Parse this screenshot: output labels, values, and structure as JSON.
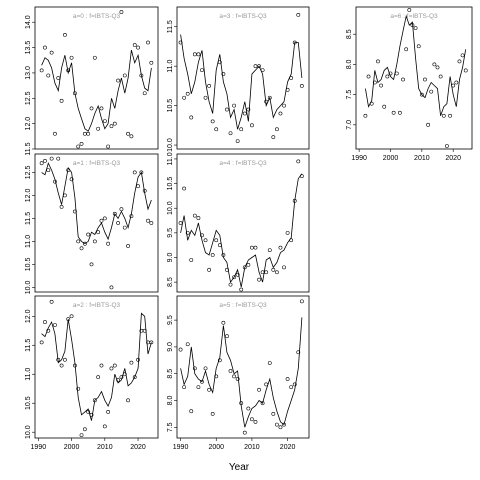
{
  "figure": {
    "x_axis_title": "Year"
  },
  "chart_data": [
    {
      "type": "line",
      "title": "a=0 : f=IBTS-Q3",
      "xlim": [
        1989,
        2026
      ],
      "ylim": [
        11.5,
        14.3
      ],
      "xticks": [],
      "yticks": [
        11.5,
        12.0,
        12.5,
        13.0,
        13.5,
        14.0
      ],
      "years": [
        1991,
        1992,
        1993,
        1994,
        1995,
        1996,
        1997,
        1998,
        1999,
        2000,
        2001,
        2002,
        2003,
        2004,
        2005,
        2006,
        2007,
        2008,
        2009,
        2010,
        2011,
        2012,
        2013,
        2014,
        2015,
        2016,
        2017,
        2018,
        2019,
        2020,
        2021,
        2022,
        2023,
        2024
      ],
      "fitted": [
        13.15,
        13.3,
        13.25,
        13.1,
        12.8,
        12.65,
        13.1,
        13.35,
        13.0,
        13.2,
        12.6,
        12.3,
        12.1,
        11.9,
        11.85,
        12.0,
        12.2,
        12.35,
        12.1,
        11.9,
        12.0,
        12.5,
        12.3,
        12.65,
        12.9,
        12.6,
        12.9,
        13.45,
        13.2,
        13.35,
        12.95,
        12.7,
        12.65,
        13.1
      ],
      "observed": [
        13.05,
        13.5,
        12.95,
        13.4,
        11.8,
        12.9,
        12.45,
        13.75,
        13.05,
        13.3,
        12.6,
        11.55,
        11.6,
        11.8,
        11.8,
        12.3,
        13.3,
        11.9,
        12.3,
        12.05,
        11.55,
        11.95,
        12.0,
        12.85,
        14.2,
        12.95,
        11.8,
        11.75,
        13.55,
        13.5,
        12.95,
        12.6,
        13.6,
        13.2
      ]
    },
    {
      "type": "line",
      "title": "a=3 : f=IBTS-Q3",
      "xlim": [
        1989,
        2026
      ],
      "ylim": [
        9.95,
        11.75
      ],
      "xticks": [],
      "yticks": [
        10.0,
        10.5,
        11.0,
        11.5
      ],
      "years": [
        1990,
        1991,
        1992,
        1993,
        1994,
        1995,
        1996,
        1997,
        1998,
        1999,
        2000,
        2001,
        2002,
        2003,
        2004,
        2005,
        2006,
        2007,
        2008,
        2009,
        2010,
        2011,
        2012,
        2013,
        2014,
        2015,
        2016,
        2017,
        2018,
        2019,
        2020,
        2021,
        2022,
        2023,
        2024
      ],
      "fitted": [
        11.4,
        11.1,
        10.9,
        10.65,
        10.8,
        11.05,
        11.2,
        10.8,
        10.55,
        10.4,
        10.95,
        11.15,
        10.8,
        10.65,
        10.35,
        10.45,
        10.2,
        10.35,
        10.55,
        10.3,
        10.9,
        10.95,
        11.0,
        10.9,
        10.5,
        10.6,
        10.35,
        10.45,
        10.5,
        10.55,
        10.8,
        10.9,
        11.3,
        11.3,
        10.85
      ],
      "observed": [
        11.3,
        10.6,
        10.65,
        10.35,
        11.15,
        11.15,
        10.95,
        10.6,
        10.75,
        10.3,
        10.2,
        11.05,
        10.9,
        10.45,
        10.15,
        10.5,
        10.05,
        10.2,
        10.4,
        10.45,
        10.25,
        11.0,
        11.0,
        10.95,
        10.55,
        10.6,
        10.1,
        10.2,
        10.4,
        10.5,
        10.7,
        10.85,
        11.3,
        11.65,
        10.75
      ]
    },
    {
      "type": "line",
      "title": "a=6 : f=IBTS-Q3",
      "xlim": [
        1989,
        2026
      ],
      "ylim": [
        6.6,
        8.95
      ],
      "xticks": [
        1990,
        2000,
        2010,
        2020
      ],
      "yticks": [
        7.0,
        7.5,
        8.0,
        8.5
      ],
      "years": [
        1992,
        1993,
        1994,
        1995,
        1996,
        1997,
        1998,
        1999,
        2000,
        2001,
        2002,
        2003,
        2004,
        2005,
        2006,
        2007,
        2008,
        2009,
        2010,
        2011,
        2012,
        2013,
        2014,
        2015,
        2016,
        2017,
        2018,
        2019,
        2020,
        2021,
        2022,
        2023,
        2024
      ],
      "fitted": [
        7.6,
        7.3,
        7.4,
        7.9,
        7.7,
        7.75,
        7.9,
        7.95,
        7.8,
        7.75,
        8.0,
        8.3,
        8.55,
        8.8,
        8.65,
        8.7,
        8.1,
        7.6,
        7.5,
        7.45,
        7.6,
        7.7,
        7.65,
        7.6,
        7.15,
        7.3,
        7.35,
        7.8,
        7.5,
        7.3,
        7.75,
        7.95,
        8.25
      ],
      "observed": [
        7.15,
        7.8,
        7.35,
        7.7,
        8.05,
        7.65,
        7.3,
        7.8,
        7.85,
        7.2,
        7.85,
        7.2,
        7.75,
        8.25,
        8.9,
        8.65,
        8.6,
        8.3,
        7.5,
        7.75,
        7.0,
        7.55,
        8.0,
        7.95,
        7.8,
        7.15,
        6.65,
        7.15,
        7.65,
        7.7,
        8.05,
        8.15,
        7.9
      ]
    },
    {
      "type": "line",
      "title": "a=1 : f=IBTS-Q3",
      "xlim": [
        1989,
        2026
      ],
      "ylim": [
        9.9,
        12.9
      ],
      "xticks": [],
      "yticks": [
        10.0,
        10.5,
        11.0,
        11.5,
        12.0,
        12.5
      ],
      "years": [
        1991,
        1992,
        1993,
        1994,
        1995,
        1996,
        1997,
        1998,
        1999,
        2000,
        2001,
        2002,
        2003,
        2004,
        2005,
        2006,
        2007,
        2008,
        2009,
        2010,
        2011,
        2012,
        2013,
        2014,
        2015,
        2016,
        2017,
        2018,
        2019,
        2020,
        2021,
        2022,
        2023,
        2024
      ],
      "fitted": [
        12.5,
        12.45,
        12.7,
        12.55,
        12.35,
        12.05,
        11.8,
        12.2,
        12.6,
        12.5,
        11.95,
        11.1,
        11.0,
        10.95,
        11.0,
        11.2,
        11.15,
        11.3,
        11.4,
        11.2,
        11.05,
        11.3,
        11.6,
        11.5,
        11.65,
        11.5,
        11.3,
        11.6,
        12.05,
        12.4,
        12.5,
        12.05,
        11.7,
        11.9
      ],
      "observed": [
        12.7,
        12.75,
        12.55,
        12.8,
        12.3,
        12.8,
        11.75,
        12.0,
        12.55,
        12.35,
        11.65,
        11.0,
        10.85,
        10.95,
        11.15,
        10.5,
        11.0,
        11.2,
        11.45,
        11.5,
        10.95,
        10.0,
        11.6,
        11.4,
        11.7,
        11.3,
        10.9,
        11.55,
        12.5,
        12.2,
        12.5,
        12.1,
        11.45,
        11.4
      ]
    },
    {
      "type": "line",
      "title": "a=4 : f=IBTS-Q3",
      "xlim": [
        1989,
        2026
      ],
      "ylim": [
        8.3,
        11.1
      ],
      "xticks": [],
      "yticks": [
        8.5,
        9.0,
        9.5,
        10.0,
        10.5,
        11.0
      ],
      "years": [
        1990,
        1991,
        1992,
        1993,
        1994,
        1995,
        1996,
        1997,
        1998,
        1999,
        2000,
        2001,
        2002,
        2003,
        2004,
        2005,
        2006,
        2007,
        2008,
        2009,
        2010,
        2011,
        2012,
        2013,
        2014,
        2015,
        2016,
        2017,
        2018,
        2019,
        2020,
        2021,
        2022,
        2023,
        2024
      ],
      "fitted": [
        9.5,
        9.85,
        9.35,
        9.55,
        9.45,
        9.7,
        9.35,
        9.1,
        9.05,
        9.3,
        9.55,
        9.45,
        9.0,
        8.9,
        8.5,
        8.6,
        8.75,
        8.4,
        8.8,
        8.95,
        9.0,
        9.05,
        8.7,
        8.5,
        8.95,
        9.0,
        8.8,
        8.9,
        9.1,
        9.15,
        9.3,
        9.4,
        10.15,
        10.6,
        10.7
      ],
      "observed": [
        9.7,
        10.4,
        9.5,
        8.95,
        9.85,
        9.8,
        9.45,
        9.35,
        8.75,
        9.05,
        9.35,
        9.25,
        9.05,
        8.75,
        8.45,
        8.6,
        8.65,
        8.35,
        8.8,
        8.85,
        9.2,
        9.2,
        8.55,
        8.7,
        8.7,
        9.15,
        8.75,
        8.7,
        9.2,
        8.8,
        9.5,
        9.35,
        10.15,
        10.95,
        10.65
      ]
    },
    {
      "type": "line",
      "title": "a=2 : f=IBTS-Q3",
      "xlim": [
        1989,
        2026
      ],
      "ylim": [
        9.9,
        12.35
      ],
      "xticks": [
        1990,
        2000,
        2010,
        2020
      ],
      "yticks": [
        10.0,
        10.5,
        11.0,
        11.5,
        12.0
      ],
      "years": [
        1991,
        1992,
        1993,
        1994,
        1995,
        1996,
        1997,
        1998,
        1999,
        2000,
        2001,
        2002,
        2003,
        2004,
        2005,
        2006,
        2007,
        2008,
        2009,
        2010,
        2011,
        2012,
        2013,
        2014,
        2015,
        2016,
        2017,
        2018,
        2019,
        2020,
        2021,
        2022,
        2023,
        2024
      ],
      "fitted": [
        11.7,
        11.65,
        11.8,
        11.9,
        11.7,
        11.2,
        11.25,
        11.4,
        11.95,
        11.6,
        11.2,
        10.6,
        10.3,
        10.35,
        10.4,
        10.2,
        10.55,
        10.6,
        10.7,
        10.55,
        10.45,
        10.6,
        11.0,
        10.85,
        10.9,
        11.1,
        10.8,
        10.85,
        10.95,
        11.1,
        12.05,
        12.0,
        11.35,
        11.55
      ],
      "observed": [
        11.55,
        11.9,
        11.75,
        12.25,
        11.85,
        11.25,
        11.15,
        11.25,
        11.95,
        12.0,
        11.15,
        10.75,
        9.95,
        10.05,
        10.35,
        10.3,
        10.55,
        10.95,
        11.15,
        10.1,
        10.35,
        11.1,
        11.15,
        10.9,
        10.95,
        11.0,
        10.55,
        11.2,
        10.95,
        11.25,
        11.75,
        11.75,
        11.55,
        11.55
      ]
    },
    {
      "type": "line",
      "title": "a=5 : f=IBTS-Q3",
      "xlim": [
        1989,
        2026
      ],
      "ylim": [
        7.3,
        9.95
      ],
      "xticks": [
        1990,
        2000,
        2010,
        2020
      ],
      "yticks": [
        7.5,
        8.0,
        8.5,
        9.0,
        9.5
      ],
      "years": [
        1990,
        1991,
        1992,
        1993,
        1994,
        1995,
        1996,
        1997,
        1998,
        1999,
        2000,
        2001,
        2002,
        2003,
        2004,
        2005,
        2006,
        2007,
        2008,
        2009,
        2010,
        2011,
        2012,
        2013,
        2014,
        2015,
        2016,
        2017,
        2018,
        2019,
        2020,
        2021,
        2022,
        2023,
        2024
      ],
      "fitted": [
        8.6,
        8.3,
        8.45,
        9.0,
        8.5,
        8.4,
        8.35,
        8.55,
        8.3,
        8.15,
        8.6,
        8.8,
        9.4,
        8.9,
        8.75,
        8.5,
        8.55,
        7.9,
        7.5,
        7.7,
        7.85,
        7.9,
        8.0,
        7.95,
        8.2,
        8.4,
        8.05,
        7.8,
        7.6,
        7.55,
        7.8,
        8.0,
        8.2,
        8.6,
        9.55
      ],
      "observed": [
        8.95,
        8.25,
        9.05,
        7.8,
        8.6,
        8.25,
        8.35,
        8.6,
        8.2,
        7.75,
        8.45,
        8.75,
        9.45,
        9.2,
        8.55,
        8.45,
        8.4,
        7.95,
        7.4,
        7.85,
        7.65,
        7.6,
        8.2,
        7.95,
        8.3,
        8.7,
        7.75,
        7.55,
        7.5,
        7.55,
        8.4,
        8.25,
        8.3,
        8.9,
        9.85
      ]
    }
  ]
}
